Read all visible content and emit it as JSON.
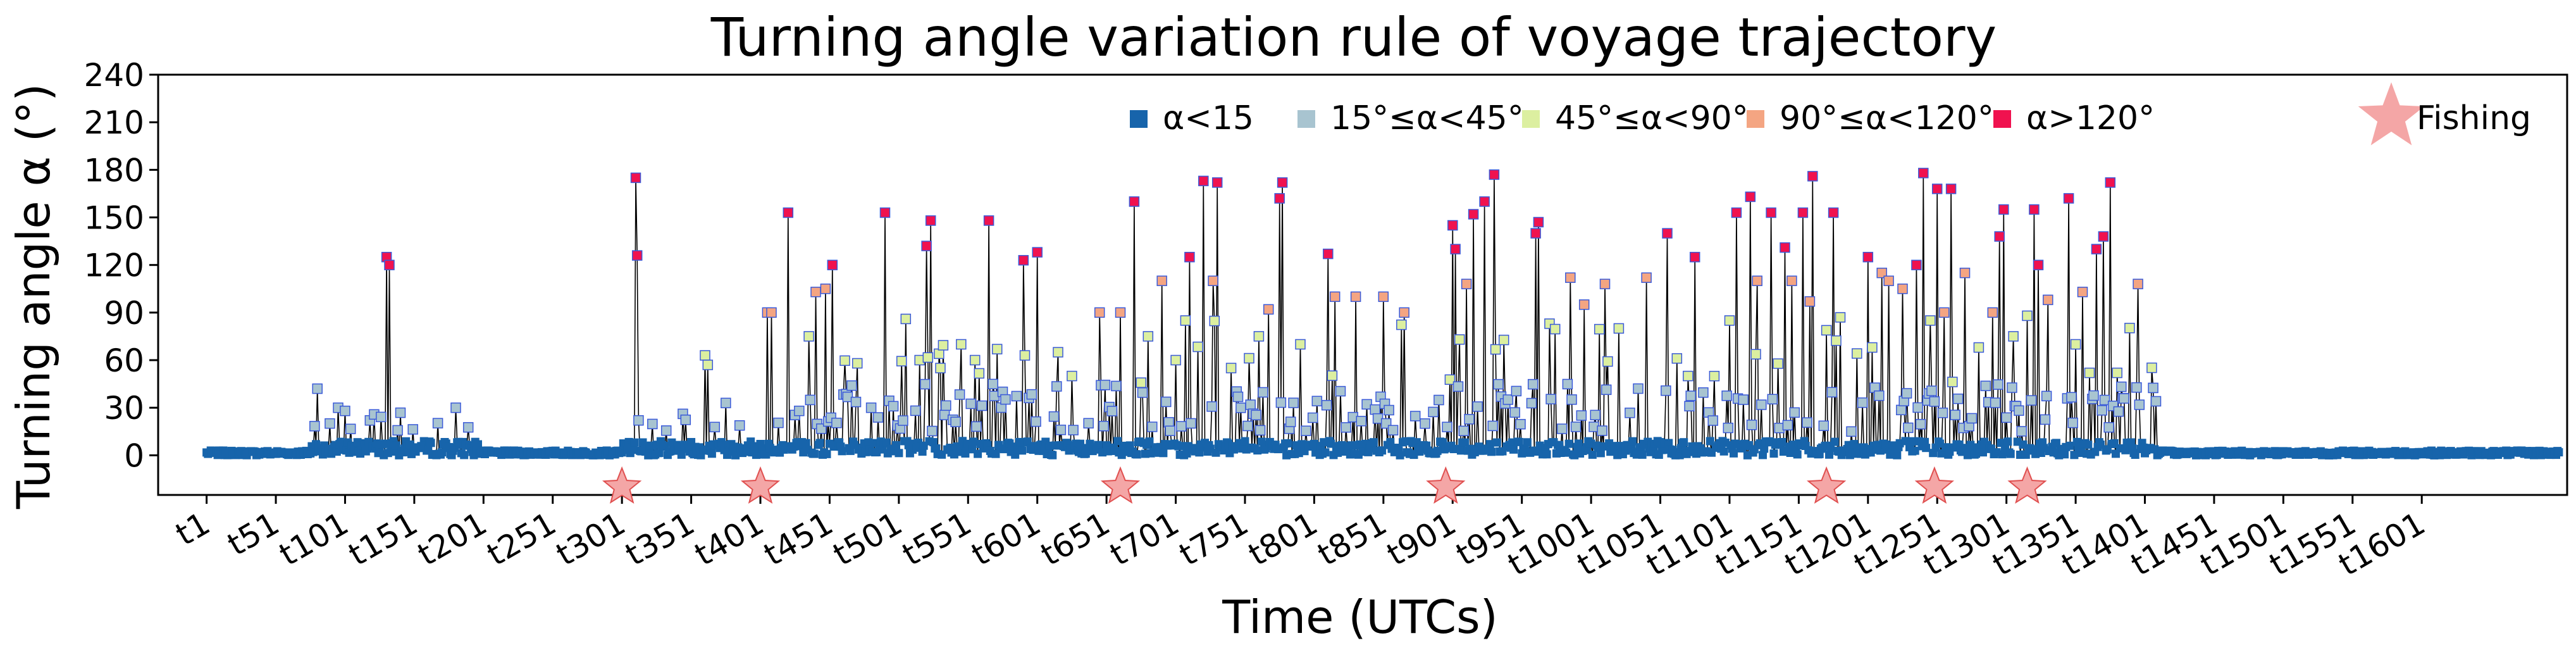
{
  "chart_data": {
    "type": "scatter",
    "title": "Turning angle variation rule of voyage trajectory",
    "xlabel": "Time (UTCs)",
    "ylabel": "Turning angle α (°)",
    "ylim": [
      -25,
      240
    ],
    "xlim": [
      -35,
      1705
    ],
    "yticks": [
      0,
      30,
      60,
      90,
      120,
      150,
      180,
      210,
      240
    ],
    "xticks": [
      {
        "x": 0,
        "label": "t1"
      },
      {
        "x": 50,
        "label": "t51"
      },
      {
        "x": 100,
        "label": "t101"
      },
      {
        "x": 150,
        "label": "t151"
      },
      {
        "x": 200,
        "label": "t201"
      },
      {
        "x": 250,
        "label": "t251"
      },
      {
        "x": 300,
        "label": "t301"
      },
      {
        "x": 350,
        "label": "t351"
      },
      {
        "x": 400,
        "label": "t401"
      },
      {
        "x": 450,
        "label": "t451"
      },
      {
        "x": 500,
        "label": "t501"
      },
      {
        "x": 550,
        "label": "t551"
      },
      {
        "x": 600,
        "label": "t601"
      },
      {
        "x": 650,
        "label": "t651"
      },
      {
        "x": 700,
        "label": "t701"
      },
      {
        "x": 750,
        "label": "t751"
      },
      {
        "x": 800,
        "label": "t801"
      },
      {
        "x": 850,
        "label": "t851"
      },
      {
        "x": 900,
        "label": "t901"
      },
      {
        "x": 950,
        "label": "t951"
      },
      {
        "x": 1000,
        "label": "t1001"
      },
      {
        "x": 1050,
        "label": "t1051"
      },
      {
        "x": 1100,
        "label": "t1101"
      },
      {
        "x": 1150,
        "label": "t1151"
      },
      {
        "x": 1200,
        "label": "t1201"
      },
      {
        "x": 1250,
        "label": "t1251"
      },
      {
        "x": 1300,
        "label": "t1301"
      },
      {
        "x": 1350,
        "label": "t1351"
      },
      {
        "x": 1400,
        "label": "t1401"
      },
      {
        "x": 1450,
        "label": "t1451"
      },
      {
        "x": 1500,
        "label": "t1501"
      },
      {
        "x": 1550,
        "label": "t1551"
      },
      {
        "x": 1600,
        "label": "t1601"
      }
    ],
    "legend_location": "top-right",
    "series": [
      {
        "name": "α<15",
        "color": "#1764ab",
        "marker": "square"
      },
      {
        "name": "15°≤α<45°",
        "color": "#a8c4d0",
        "marker": "square"
      },
      {
        "name": "45°≤α<90°",
        "color": "#dcefa0",
        "marker": "square"
      },
      {
        "name": "90°≤α<120°",
        "color": "#f4a582",
        "marker": "square"
      },
      {
        "name": "α>120°",
        "color": "#f0124f",
        "marker": "square"
      },
      {
        "name": "Fishing",
        "color": "#f4a6a6",
        "marker": "star"
      }
    ],
    "line_color": "#000000",
    "fishing_y": -20,
    "fishing_x": [
      300,
      400,
      660,
      895,
      1170,
      1248,
      1315
    ],
    "spikes": [
      [
        80,
        42
      ],
      [
        95,
        30
      ],
      [
        100,
        28
      ],
      [
        130,
        125
      ],
      [
        132,
        120
      ],
      [
        180,
        30
      ],
      [
        310,
        175
      ],
      [
        311,
        126
      ],
      [
        312,
        22
      ],
      [
        360,
        63
      ],
      [
        362,
        57
      ],
      [
        375,
        33
      ],
      [
        405,
        90
      ],
      [
        408,
        90
      ],
      [
        420,
        153
      ],
      [
        435,
        75
      ],
      [
        440,
        103
      ],
      [
        447,
        105
      ],
      [
        452,
        120
      ],
      [
        470,
        58
      ],
      [
        480,
        30
      ],
      [
        490,
        153
      ],
      [
        505,
        86
      ],
      [
        515,
        60
      ],
      [
        520,
        132
      ],
      [
        523,
        148
      ],
      [
        530,
        55
      ],
      [
        545,
        70
      ],
      [
        555,
        60
      ],
      [
        565,
        148
      ],
      [
        575,
        40
      ],
      [
        590,
        123
      ],
      [
        600,
        128
      ],
      [
        615,
        65
      ],
      [
        625,
        50
      ],
      [
        645,
        90
      ],
      [
        660,
        90
      ],
      [
        670,
        160
      ],
      [
        680,
        75
      ],
      [
        690,
        110
      ],
      [
        700,
        60
      ],
      [
        710,
        125
      ],
      [
        720,
        173
      ],
      [
        727,
        110
      ],
      [
        730,
        172
      ],
      [
        740,
        55
      ],
      [
        760,
        75
      ],
      [
        767,
        92
      ],
      [
        775,
        162
      ],
      [
        777,
        172
      ],
      [
        790,
        70
      ],
      [
        810,
        127
      ],
      [
        815,
        100
      ],
      [
        830,
        100
      ],
      [
        850,
        100
      ],
      [
        865,
        90
      ],
      [
        880,
        20
      ],
      [
        900,
        145
      ],
      [
        902,
        130
      ],
      [
        905,
        73
      ],
      [
        910,
        108
      ],
      [
        915,
        152
      ],
      [
        923,
        160
      ],
      [
        930,
        177
      ],
      [
        960,
        140
      ],
      [
        962,
        147
      ],
      [
        970,
        83
      ],
      [
        985,
        112
      ],
      [
        995,
        95
      ],
      [
        1010,
        108
      ],
      [
        1020,
        80
      ],
      [
        1040,
        112
      ],
      [
        1055,
        140
      ],
      [
        1070,
        50
      ],
      [
        1075,
        125
      ],
      [
        1085,
        27
      ],
      [
        1100,
        85
      ],
      [
        1105,
        153
      ],
      [
        1115,
        163
      ],
      [
        1120,
        110
      ],
      [
        1130,
        153
      ],
      [
        1140,
        131
      ],
      [
        1145,
        110
      ],
      [
        1153,
        153
      ],
      [
        1158,
        97
      ],
      [
        1160,
        176
      ],
      [
        1175,
        153
      ],
      [
        1180,
        87
      ],
      [
        1200,
        125
      ],
      [
        1203,
        68
      ],
      [
        1210,
        115
      ],
      [
        1215,
        110
      ],
      [
        1225,
        105
      ],
      [
        1235,
        120
      ],
      [
        1240,
        178
      ],
      [
        1245,
        85
      ],
      [
        1250,
        168
      ],
      [
        1255,
        90
      ],
      [
        1260,
        168
      ],
      [
        1270,
        115
      ],
      [
        1280,
        68
      ],
      [
        1290,
        90
      ],
      [
        1295,
        138
      ],
      [
        1298,
        155
      ],
      [
        1305,
        75
      ],
      [
        1315,
        88
      ],
      [
        1320,
        155
      ],
      [
        1323,
        120
      ],
      [
        1330,
        98
      ],
      [
        1345,
        162
      ],
      [
        1350,
        70
      ],
      [
        1355,
        103
      ],
      [
        1360,
        52
      ],
      [
        1365,
        130
      ],
      [
        1370,
        138
      ],
      [
        1375,
        172
      ],
      [
        1380,
        52
      ],
      [
        1395,
        108
      ]
    ]
  }
}
